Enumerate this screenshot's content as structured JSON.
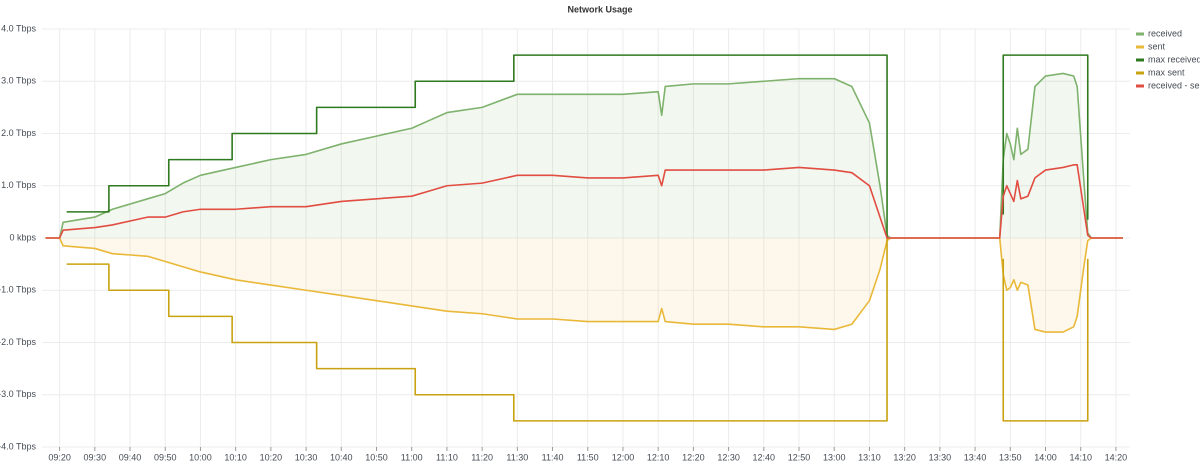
{
  "chart_data": {
    "type": "line",
    "title": "Network Usage",
    "xlim": [
      "09:15",
      "14:24"
    ],
    "xticks": [
      "09:20",
      "09:30",
      "09:40",
      "09:50",
      "10:00",
      "10:10",
      "10:20",
      "10:30",
      "10:40",
      "10:50",
      "11:00",
      "11:10",
      "11:20",
      "11:30",
      "11:40",
      "11:50",
      "12:00",
      "12:10",
      "12:20",
      "12:30",
      "12:40",
      "12:50",
      "13:00",
      "13:10",
      "13:20",
      "13:30",
      "13:40",
      "13:50",
      "14:00",
      "14:10",
      "14:20"
    ],
    "ylim": [
      -4,
      4
    ],
    "yticks": [
      {
        "value": -4,
        "label": "-4.0 Tbps"
      },
      {
        "value": -3,
        "label": "-3.0 Tbps"
      },
      {
        "value": -2,
        "label": "-2.0 Tbps"
      },
      {
        "value": -1,
        "label": "-1.0 Tbps"
      },
      {
        "value": 0,
        "label": "0 kbps"
      },
      {
        "value": 1,
        "label": "1.0 Tbps"
      },
      {
        "value": 2,
        "label": "2.0 Tbps"
      },
      {
        "value": 3,
        "label": "3.0 Tbps"
      },
      {
        "value": 4,
        "label": "4.0 Tbps"
      }
    ],
    "grid": true,
    "legend": "right",
    "series": [
      {
        "name": "received",
        "color": "#7eb26d",
        "fill_opacity": 0.1,
        "x": [
          "09:16",
          "09:20",
          "09:21",
          "09:30",
          "09:35",
          "09:45",
          "09:50",
          "09:55",
          "10:00",
          "10:10",
          "10:20",
          "10:30",
          "10:40",
          "10:50",
          "11:00",
          "11:05",
          "11:10",
          "11:20",
          "11:30",
          "11:40",
          "11:50",
          "12:00",
          "12:10",
          "12:11",
          "12:12",
          "12:20",
          "12:30",
          "12:40",
          "12:50",
          "13:00",
          "13:05",
          "13:10",
          "13:13",
          "13:15",
          "13:16",
          "13:47",
          "13:48",
          "13:49",
          "13:50",
          "13:51",
          "13:52",
          "13:53",
          "13:55",
          "13:57",
          "14:00",
          "14:05",
          "14:08",
          "14:09",
          "14:11",
          "14:12",
          "14:13",
          "14:22"
        ],
        "values": [
          0,
          0,
          0.3,
          0.4,
          0.55,
          0.75,
          0.85,
          1.05,
          1.2,
          1.35,
          1.5,
          1.6,
          1.8,
          1.95,
          2.1,
          2.25,
          2.4,
          2.5,
          2.75,
          2.75,
          2.75,
          2.75,
          2.8,
          2.35,
          2.9,
          2.95,
          2.95,
          3.0,
          3.05,
          3.05,
          2.9,
          2.2,
          1.0,
          0.05,
          0,
          0,
          1.5,
          2.0,
          1.8,
          1.5,
          2.1,
          1.6,
          1.7,
          2.9,
          3.1,
          3.15,
          3.1,
          2.9,
          1.0,
          0.1,
          0,
          0
        ]
      },
      {
        "name": "sent",
        "color": "#eab839",
        "fill_opacity": 0.1,
        "x": [
          "09:16",
          "09:20",
          "09:21",
          "09:30",
          "09:35",
          "09:45",
          "09:50",
          "09:55",
          "10:00",
          "10:10",
          "10:20",
          "10:30",
          "10:40",
          "10:50",
          "11:00",
          "11:05",
          "11:10",
          "11:20",
          "11:30",
          "11:40",
          "11:50",
          "12:00",
          "12:10",
          "12:11",
          "12:12",
          "12:20",
          "12:30",
          "12:40",
          "12:50",
          "13:00",
          "13:05",
          "13:10",
          "13:13",
          "13:15",
          "13:16",
          "13:47",
          "13:48",
          "13:49",
          "13:50",
          "13:51",
          "13:52",
          "13:53",
          "13:55",
          "13:57",
          "14:00",
          "14:05",
          "14:08",
          "14:09",
          "14:11",
          "14:12",
          "14:13",
          "14:22"
        ],
        "values": [
          0,
          0,
          -0.15,
          -0.2,
          -0.3,
          -0.35,
          -0.45,
          -0.55,
          -0.65,
          -0.8,
          -0.9,
          -1.0,
          -1.1,
          -1.2,
          -1.3,
          -1.35,
          -1.4,
          -1.45,
          -1.55,
          -1.55,
          -1.6,
          -1.6,
          -1.6,
          -1.35,
          -1.6,
          -1.65,
          -1.65,
          -1.7,
          -1.7,
          -1.75,
          -1.65,
          -1.2,
          -0.6,
          -0.05,
          0,
          0,
          -0.7,
          -1.0,
          -0.95,
          -0.8,
          -1.0,
          -0.85,
          -0.9,
          -1.75,
          -1.8,
          -1.8,
          -1.7,
          -1.5,
          -0.5,
          -0.05,
          0,
          0
        ]
      },
      {
        "name": "max received",
        "color": "#2f7a1f",
        "fill_opacity": 0,
        "x": [
          "09:22",
          "09:34",
          "09:34",
          "09:51",
          "09:51",
          "10:09",
          "10:09",
          "10:33",
          "10:33",
          "11:01",
          "11:01",
          "11:29",
          "11:29",
          "13:15",
          "13:15",
          "13:30",
          "13:48",
          "13:48",
          "14:12",
          "14:12"
        ],
        "values": [
          0.5,
          0.5,
          1.0,
          1.0,
          1.5,
          1.5,
          2.0,
          2.0,
          2.5,
          2.5,
          3.0,
          3.0,
          3.5,
          3.5,
          0,
          null,
          0.45,
          3.5,
          3.5,
          0.35
        ]
      },
      {
        "name": "max sent",
        "color": "#c9a20f",
        "fill_opacity": 0,
        "x": [
          "09:22",
          "09:34",
          "09:34",
          "09:51",
          "09:51",
          "10:09",
          "10:09",
          "10:33",
          "10:33",
          "11:01",
          "11:01",
          "11:29",
          "11:29",
          "13:15",
          "13:15",
          "13:30",
          "13:48",
          "13:48",
          "14:12",
          "14:12"
        ],
        "values": [
          -0.5,
          -0.5,
          -1.0,
          -1.0,
          -1.5,
          -1.5,
          -2.0,
          -2.0,
          -2.5,
          -2.5,
          -3.0,
          -3.0,
          -3.5,
          -3.5,
          0,
          null,
          -0.4,
          -3.5,
          -3.5,
          -0.4
        ]
      },
      {
        "name": "received - sent",
        "color": "#e24d42",
        "fill_opacity": 0,
        "x": [
          "09:16",
          "09:20",
          "09:21",
          "09:30",
          "09:35",
          "09:45",
          "09:50",
          "09:55",
          "10:00",
          "10:10",
          "10:20",
          "10:30",
          "10:40",
          "10:50",
          "11:00",
          "11:05",
          "11:10",
          "11:20",
          "11:30",
          "11:40",
          "11:50",
          "12:00",
          "12:10",
          "12:11",
          "12:12",
          "12:20",
          "12:30",
          "12:40",
          "12:50",
          "13:00",
          "13:05",
          "13:10",
          "13:13",
          "13:15",
          "13:16",
          "13:47",
          "13:48",
          "13:49",
          "13:50",
          "13:51",
          "13:52",
          "13:53",
          "13:55",
          "13:57",
          "14:00",
          "14:05",
          "14:08",
          "14:09",
          "14:11",
          "14:12",
          "14:13",
          "14:22"
        ],
        "values": [
          0,
          0,
          0.15,
          0.2,
          0.25,
          0.4,
          0.4,
          0.5,
          0.55,
          0.55,
          0.6,
          0.6,
          0.7,
          0.75,
          0.8,
          0.9,
          1.0,
          1.05,
          1.2,
          1.2,
          1.15,
          1.15,
          1.2,
          1.0,
          1.3,
          1.3,
          1.3,
          1.3,
          1.35,
          1.3,
          1.25,
          1.0,
          0.4,
          0,
          0,
          0,
          0.8,
          1.0,
          0.85,
          0.7,
          1.1,
          0.75,
          0.8,
          1.15,
          1.3,
          1.35,
          1.4,
          1.4,
          0.5,
          0.05,
          0,
          0
        ]
      }
    ]
  }
}
